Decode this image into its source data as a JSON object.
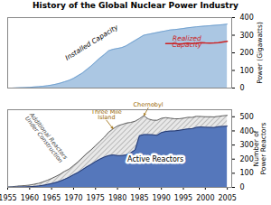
{
  "chart_data": [
    {
      "type": "area",
      "title": "History of the Global Nuclear Power Industry",
      "x": [
        1955,
        1956,
        1957,
        1958,
        1959,
        1960,
        1961,
        1962,
        1963,
        1964,
        1965,
        1966,
        1967,
        1968,
        1969,
        1970,
        1971,
        1972,
        1973,
        1974,
        1975,
        1976,
        1977,
        1978,
        1979,
        1980,
        1981,
        1982,
        1983,
        1984,
        1985,
        1986,
        1987,
        1988,
        1989,
        1990,
        1991,
        1992,
        1993,
        1994,
        1995,
        1996,
        1997,
        1998,
        1999,
        2000,
        2001,
        2002,
        2003,
        2004,
        2005
      ],
      "series": [
        {
          "name": "Installed Capacity",
          "type": "area",
          "color": "#6699cc",
          "values": [
            0,
            0,
            1,
            2,
            3,
            4,
            6,
            8,
            10,
            13,
            17,
            22,
            28,
            36,
            44,
            55,
            70,
            85,
            105,
            125,
            148,
            170,
            190,
            212,
            220,
            225,
            230,
            240,
            255,
            270,
            285,
            300,
            305,
            310,
            315,
            320,
            325,
            330,
            332,
            335,
            338,
            342,
            345,
            348,
            350,
            352,
            354,
            356,
            358,
            360,
            363
          ]
        },
        {
          "name": "Realized\nCapacity",
          "type": "line",
          "color": "#cc2222",
          "values": [
            null,
            null,
            null,
            null,
            null,
            null,
            null,
            null,
            null,
            null,
            null,
            null,
            null,
            null,
            null,
            null,
            null,
            null,
            null,
            null,
            null,
            null,
            null,
            null,
            null,
            null,
            null,
            null,
            null,
            null,
            null,
            null,
            null,
            null,
            null,
            null,
            252,
            253,
            252,
            250,
            252,
            255,
            253,
            255,
            258,
            256,
            255,
            256,
            258,
            262,
            265
          ]
        }
      ],
      "xlim": [
        1955,
        2006
      ],
      "ylim": [
        0,
        400
      ],
      "yticks": [
        0,
        100,
        200,
        300,
        400
      ],
      "ylabel": "Power (Gigawatts)",
      "tick_labels": "y",
      "grid": false
    },
    {
      "type": "area",
      "x": [
        1955,
        1956,
        1957,
        1958,
        1959,
        1960,
        1961,
        1962,
        1963,
        1964,
        1965,
        1966,
        1967,
        1968,
        1969,
        1970,
        1971,
        1972,
        1973,
        1974,
        1975,
        1976,
        1977,
        1978,
        1979,
        1980,
        1981,
        1982,
        1983,
        1984,
        1985,
        1986,
        1987,
        1988,
        1989,
        1990,
        1991,
        1992,
        1993,
        1994,
        1995,
        1996,
        1997,
        1998,
        1999,
        2000,
        2001,
        2002,
        2003,
        2004,
        2005
      ],
      "series": [
        {
          "name": "Additional Reactors\nUnder Construction",
          "type": "area",
          "color": "#999999",
          "values": [
            3,
            5,
            8,
            11,
            13,
            16,
            22,
            28,
            38,
            50,
            63,
            78,
            94,
            114,
            130,
            155,
            180,
            210,
            240,
            265,
            295,
            325,
            355,
            390,
            415,
            435,
            445,
            455,
            460,
            468,
            486,
            508,
            485,
            476,
            475,
            489,
            494,
            490,
            486,
            486,
            490,
            496,
            496,
            503,
            502,
            500,
            500,
            499,
            503,
            507,
            510
          ]
        },
        {
          "name": "Active Reactors",
          "type": "area",
          "color": "#5577bb",
          "values": [
            1,
            1,
            2,
            3,
            4,
            5,
            7,
            10,
            14,
            20,
            27,
            35,
            45,
            58,
            72,
            90,
            105,
            125,
            145,
            163,
            183,
            200,
            215,
            225,
            230,
            225,
            225,
            230,
            245,
            265,
            366,
            374,
            374,
            373,
            369,
            388,
            396,
            399,
            400,
            404,
            409,
            414,
            416,
            425,
            428,
            426,
            425,
            424,
            430,
            432,
            434
          ]
        }
      ],
      "xlim": [
        1955,
        2006
      ],
      "xticks": [
        1955,
        1960,
        1965,
        1970,
        1975,
        1980,
        1985,
        1990,
        1995,
        2000,
        2005
      ],
      "ylim": [
        0,
        550
      ],
      "yticks": [
        0,
        100,
        200,
        300,
        400,
        500
      ],
      "ylabel": "Number of\nPower Reactors",
      "grid": false,
      "annotations": [
        {
          "text": "Three Mile\nIsland",
          "x": 1979,
          "color": "#996600"
        },
        {
          "text": "Chernobyl",
          "x": 1986,
          "color": "#996600"
        }
      ]
    }
  ]
}
